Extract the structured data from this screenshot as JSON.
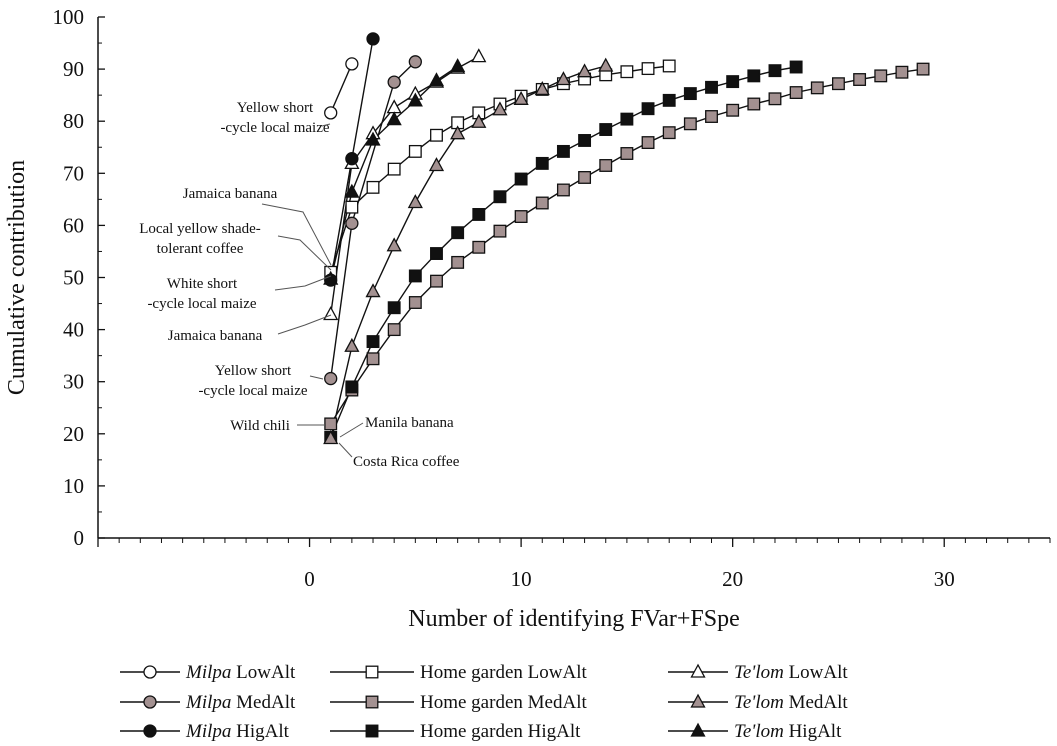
{
  "chart_data": {
    "type": "line",
    "title": "",
    "xlabel": "Number of identifying FVar+FSpe",
    "ylabel": "Cumulative contribution",
    "xlim": [
      -10,
      35
    ],
    "ylim": [
      0,
      100
    ],
    "x_ticks": [
      "0",
      "10",
      "20",
      "30"
    ],
    "y_ticks": [
      "0",
      "10",
      "20",
      "30",
      "40",
      "50",
      "60",
      "70",
      "80",
      "90",
      "100"
    ],
    "grid": false,
    "legend_position": "bottom",
    "series": [
      {
        "key": "milpa_low",
        "prefix": "Milpa",
        "suffix": "LowAlt",
        "marker": "circle",
        "fill": "#ffffff",
        "x": [
          1,
          2
        ],
        "y": [
          81.6,
          91
        ]
      },
      {
        "key": "milpa_med",
        "prefix": "Milpa",
        "suffix": "MedAlt",
        "marker": "circle",
        "fill": "#a39191",
        "x": [
          1,
          2,
          4,
          5
        ],
        "y": [
          30.6,
          60.4,
          87.5,
          91.4
        ]
      },
      {
        "key": "milpa_hig",
        "prefix": "Milpa",
        "suffix": "HigAlt",
        "marker": "circle",
        "fill": "#111111",
        "x": [
          1,
          2,
          3
        ],
        "y": [
          49.5,
          72.8,
          95.8
        ]
      },
      {
        "key": "hg_low",
        "prefix": "Home garden",
        "suffix": "LowAlt",
        "marker": "square",
        "fill": "#ffffff",
        "x": [
          1,
          2,
          3,
          4,
          5,
          6,
          7,
          8,
          9,
          10,
          11,
          12,
          13,
          14,
          15,
          16,
          17
        ],
        "y": [
          51,
          63.5,
          67.3,
          70.8,
          74.2,
          77.3,
          79.7,
          81.6,
          83.3,
          84.8,
          86.1,
          87.2,
          88.1,
          88.9,
          89.5,
          90.1,
          90.6
        ]
      },
      {
        "key": "hg_med",
        "prefix": "Home garden",
        "suffix": "MedAlt",
        "marker": "square",
        "fill": "#a39191",
        "x": [
          1,
          2,
          3,
          4,
          5,
          6,
          7,
          8,
          9,
          10,
          11,
          12,
          13,
          14,
          15,
          16,
          17,
          18,
          19,
          20,
          21,
          22,
          23,
          24,
          25,
          26,
          27,
          28,
          29
        ],
        "y": [
          21.9,
          28.4,
          34.4,
          40,
          45.2,
          49.3,
          52.9,
          55.8,
          58.9,
          61.7,
          64.3,
          66.8,
          69.2,
          71.5,
          73.8,
          75.9,
          77.8,
          79.5,
          80.9,
          82.1,
          83.3,
          84.3,
          85.5,
          86.4,
          87.2,
          88,
          88.7,
          89.4,
          90
        ]
      },
      {
        "key": "hg_hig",
        "prefix": "Home garden",
        "suffix": "HigAlt",
        "marker": "square",
        "fill": "#111111",
        "x": [
          1,
          2,
          3,
          4,
          5,
          6,
          7,
          8,
          9,
          10,
          11,
          12,
          13,
          14,
          15,
          16,
          17,
          18,
          19,
          20,
          21,
          22,
          23
        ],
        "y": [
          19.3,
          29,
          37.7,
          44.2,
          50.3,
          54.6,
          58.6,
          62.1,
          65.5,
          68.9,
          71.9,
          74.2,
          76.3,
          78.4,
          80.4,
          82.4,
          84,
          85.3,
          86.5,
          87.6,
          88.7,
          89.7,
          90.4
        ]
      },
      {
        "key": "tl_low",
        "prefix": "Te'lom",
        "suffix": "LowAlt",
        "marker": "triangle",
        "fill": "#ffffff",
        "x": [
          1,
          2,
          3,
          4,
          5,
          6,
          7,
          8
        ],
        "y": [
          42.9,
          71.9,
          77.6,
          82.6,
          85.2,
          87.5,
          90.2,
          92.4
        ]
      },
      {
        "key": "tl_med",
        "prefix": "Te'lom",
        "suffix": "MedAlt",
        "marker": "triangle",
        "fill": "#a39191",
        "x": [
          1,
          2,
          3,
          4,
          5,
          6,
          7,
          8,
          9,
          10,
          11,
          12,
          13,
          14
        ],
        "y": [
          19.1,
          36.8,
          47.3,
          56.1,
          64.4,
          71.5,
          77.6,
          79.8,
          82.2,
          84.2,
          86.1,
          88,
          89.5,
          90.6
        ]
      },
      {
        "key": "tl_hig",
        "prefix": "Te'lom",
        "suffix": "HigAlt",
        "marker": "triangle",
        "fill": "#111111",
        "x": [
          1,
          2,
          3,
          4,
          5,
          6,
          7
        ],
        "y": [
          49.7,
          66.4,
          76.4,
          80.3,
          83.9,
          87.8,
          90.5
        ]
      }
    ],
    "annotations": [
      {
        "lines": [
          "Yellow  short",
          "-cycle local maize"
        ]
      },
      {
        "lines": [
          "Jamaica banana"
        ]
      },
      {
        "lines": [
          "Local yellow shade-",
          "tolerant coffee"
        ]
      },
      {
        "lines": [
          "White short",
          "-cycle local maize"
        ]
      },
      {
        "lines": [
          "Jamaica banana"
        ]
      },
      {
        "lines": [
          "Yellow  short",
          "-cycle local maize"
        ]
      },
      {
        "lines": [
          "Wild chili"
        ]
      },
      {
        "lines": [
          "Manila banana"
        ]
      },
      {
        "lines": [
          "Costa Rica coffee"
        ]
      }
    ]
  }
}
